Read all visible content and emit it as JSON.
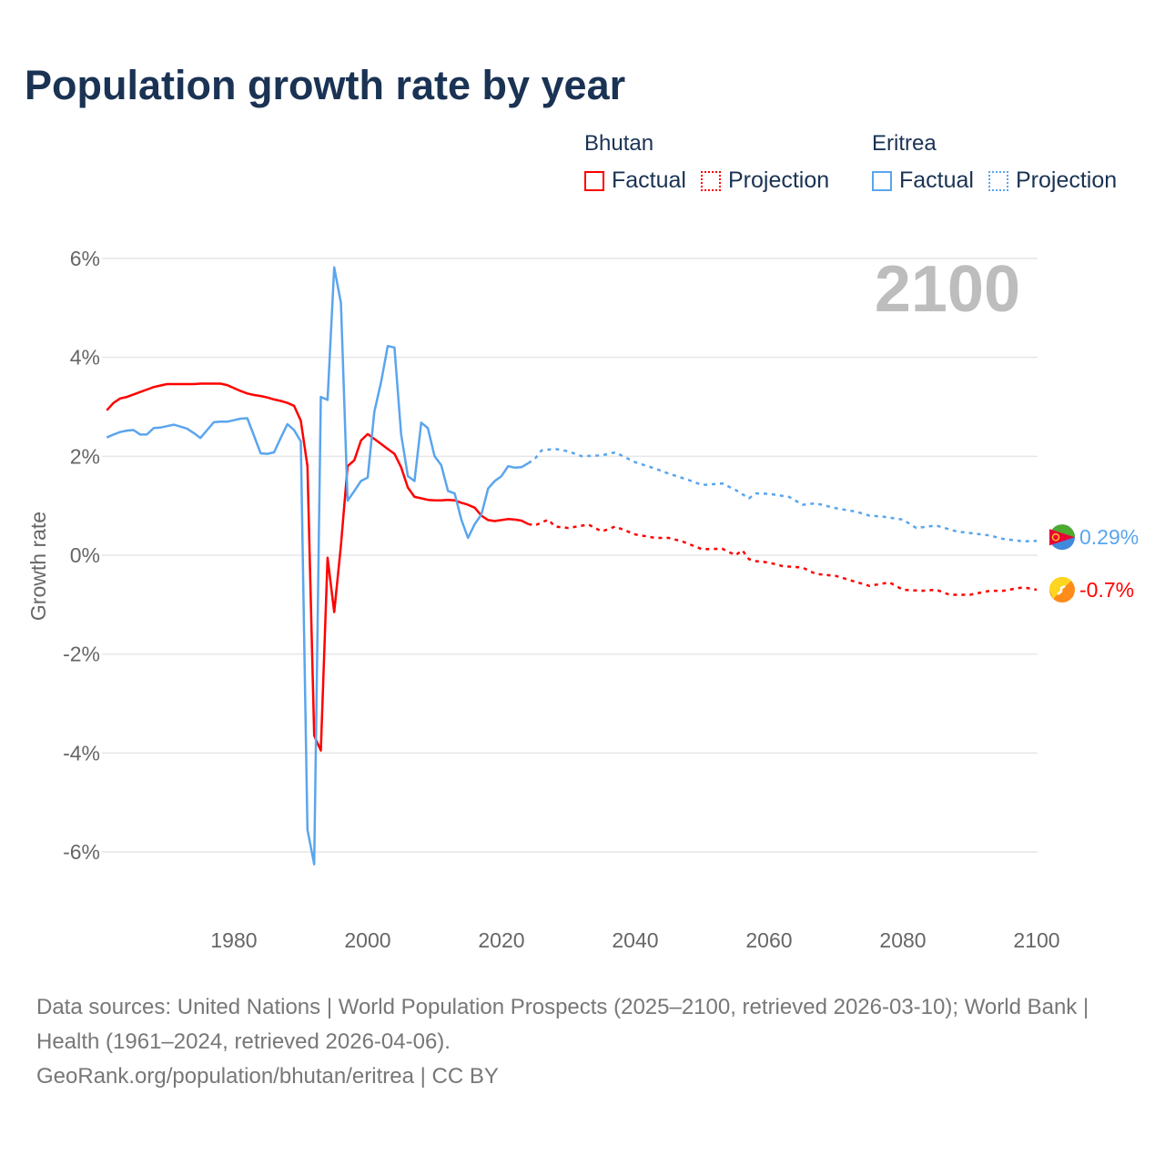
{
  "title": "Population growth rate by year",
  "legend": {
    "groups": [
      {
        "name": "Bhutan",
        "factual": "Factual",
        "projection": "Projection",
        "color": "#ff0000"
      },
      {
        "name": "Eritrea",
        "factual": "Factual",
        "projection": "Projection",
        "color": "#5aa5ee"
      }
    ]
  },
  "footer": {
    "sources": "Data sources: United Nations | World Population Prospects (2025–2100, retrieved 2026-03-10); World Bank | Health (1961–2024, retrieved 2026-04-06).",
    "link": "GeoRank.org/population/bhutan/eritrea | CC BY"
  },
  "chart_data": {
    "type": "line",
    "title": "Population growth rate by year",
    "xlabel": "",
    "ylabel": "Growth rate",
    "year_label": "2100",
    "xlim": [
      1961,
      2100
    ],
    "ylim": [
      -7,
      6.5
    ],
    "xticks": [
      1980,
      2000,
      2020,
      2040,
      2060,
      2080,
      2100
    ],
    "yticks": [
      6,
      4,
      2,
      0,
      -2,
      -4,
      -6
    ],
    "ytick_labels": [
      "6%",
      "4%",
      "2%",
      "0%",
      "-2%",
      "-4%",
      "-6%"
    ],
    "grid": true,
    "series": [
      {
        "name": "Bhutan",
        "color": "#ff0000",
        "end_label": "-0.7%",
        "factual": {
          "x": [
            1961,
            1962,
            1963,
            1964,
            1965,
            1966,
            1967,
            1968,
            1969,
            1970,
            1971,
            1972,
            1973,
            1974,
            1975,
            1976,
            1977,
            1978,
            1979,
            1980,
            1981,
            1982,
            1983,
            1984,
            1985,
            1986,
            1987,
            1988,
            1989,
            1990,
            1991,
            1992,
            1993,
            1994,
            1995,
            1996,
            1997,
            1998,
            1999,
            2000,
            2001,
            2002,
            2003,
            2004,
            2005,
            2006,
            2007,
            2008,
            2009,
            2010,
            2011,
            2012,
            2013,
            2014,
            2015,
            2016,
            2017,
            2018,
            2019,
            2020,
            2021,
            2022,
            2023,
            2024
          ],
          "y": [
            2.93,
            3.08,
            3.17,
            3.2,
            3.25,
            3.3,
            3.35,
            3.4,
            3.43,
            3.46,
            3.46,
            3.46,
            3.46,
            3.46,
            3.47,
            3.47,
            3.47,
            3.47,
            3.44,
            3.38,
            3.32,
            3.27,
            3.24,
            3.22,
            3.19,
            3.15,
            3.12,
            3.08,
            3.02,
            2.72,
            1.8,
            -3.65,
            -3.95,
            -0.05,
            -1.15,
            0.2,
            1.8,
            1.92,
            2.32,
            2.45,
            2.35,
            2.25,
            2.15,
            2.05,
            1.78,
            1.37,
            1.18,
            1.15,
            1.12,
            1.11,
            1.11,
            1.12,
            1.11,
            1.06,
            1.02,
            0.96,
            0.8,
            0.71,
            0.69,
            0.71,
            0.73,
            0.72,
            0.7,
            0.63
          ]
        },
        "projection": {
          "x": [
            2024,
            2025,
            2027,
            2028,
            2030,
            2033,
            2035,
            2037,
            2040,
            2043,
            2045,
            2047,
            2050,
            2053,
            2055,
            2056,
            2057,
            2058,
            2060,
            2062,
            2065,
            2067,
            2070,
            2072,
            2075,
            2078,
            2080,
            2083,
            2085,
            2087,
            2090,
            2093,
            2095,
            2098,
            2100
          ],
          "y": [
            0.63,
            0.6,
            0.72,
            0.58,
            0.55,
            0.62,
            0.48,
            0.58,
            0.42,
            0.35,
            0.35,
            0.28,
            0.12,
            0.13,
            0.0,
            0.1,
            -0.08,
            -0.12,
            -0.15,
            -0.22,
            -0.25,
            -0.38,
            -0.42,
            -0.5,
            -0.62,
            -0.55,
            -0.7,
            -0.72,
            -0.7,
            -0.8,
            -0.8,
            -0.72,
            -0.72,
            -0.65,
            -0.7
          ]
        }
      },
      {
        "name": "Eritrea",
        "color": "#5aa5ee",
        "end_label": "0.29%",
        "factual": {
          "x": [
            1961,
            1962,
            1963,
            1964,
            1965,
            1966,
            1967,
            1968,
            1969,
            1970,
            1971,
            1972,
            1973,
            1974,
            1975,
            1976,
            1977,
            1978,
            1979,
            1980,
            1981,
            1982,
            1983,
            1984,
            1985,
            1986,
            1987,
            1988,
            1989,
            1990,
            1991,
            1992,
            1993,
            1994,
            1995,
            1996,
            1997,
            1998,
            1999,
            2000,
            2001,
            2002,
            2003,
            2004,
            2005,
            2006,
            2007,
            2008,
            2009,
            2010,
            2011,
            2012,
            2013,
            2014,
            2015,
            2016,
            2017,
            2018,
            2019,
            2020,
            2021,
            2022,
            2023,
            2024
          ],
          "y": [
            2.38,
            2.44,
            2.49,
            2.52,
            2.53,
            2.44,
            2.44,
            2.57,
            2.58,
            2.61,
            2.64,
            2.6,
            2.56,
            2.47,
            2.37,
            2.53,
            2.69,
            2.7,
            2.7,
            2.73,
            2.76,
            2.77,
            2.42,
            2.06,
            2.05,
            2.08,
            2.37,
            2.65,
            2.53,
            2.3,
            -5.55,
            -6.25,
            3.2,
            3.14,
            5.82,
            5.1,
            1.1,
            1.3,
            1.5,
            1.57,
            2.9,
            3.5,
            4.23,
            4.2,
            2.45,
            1.6,
            1.5,
            2.68,
            2.57,
            2.0,
            1.82,
            1.3,
            1.25,
            0.72,
            0.35,
            0.63,
            0.82,
            1.35,
            1.5,
            1.6,
            1.8,
            1.77,
            1.78,
            1.86
          ]
        },
        "projection": {
          "x": [
            2024,
            2025,
            2026,
            2028,
            2030,
            2032,
            2035,
            2037,
            2040,
            2043,
            2045,
            2048,
            2050,
            2053,
            2055,
            2057,
            2058,
            2060,
            2063,
            2065,
            2067,
            2070,
            2073,
            2075,
            2077,
            2080,
            2082,
            2085,
            2088,
            2090,
            2093,
            2095,
            2098,
            2100
          ],
          "y": [
            1.86,
            1.95,
            2.12,
            2.15,
            2.1,
            2.0,
            2.02,
            2.08,
            1.88,
            1.75,
            1.65,
            1.52,
            1.42,
            1.45,
            1.32,
            1.15,
            1.25,
            1.24,
            1.18,
            1.02,
            1.05,
            0.95,
            0.88,
            0.8,
            0.78,
            0.72,
            0.55,
            0.6,
            0.48,
            0.45,
            0.4,
            0.33,
            0.28,
            0.29
          ]
        }
      }
    ]
  }
}
